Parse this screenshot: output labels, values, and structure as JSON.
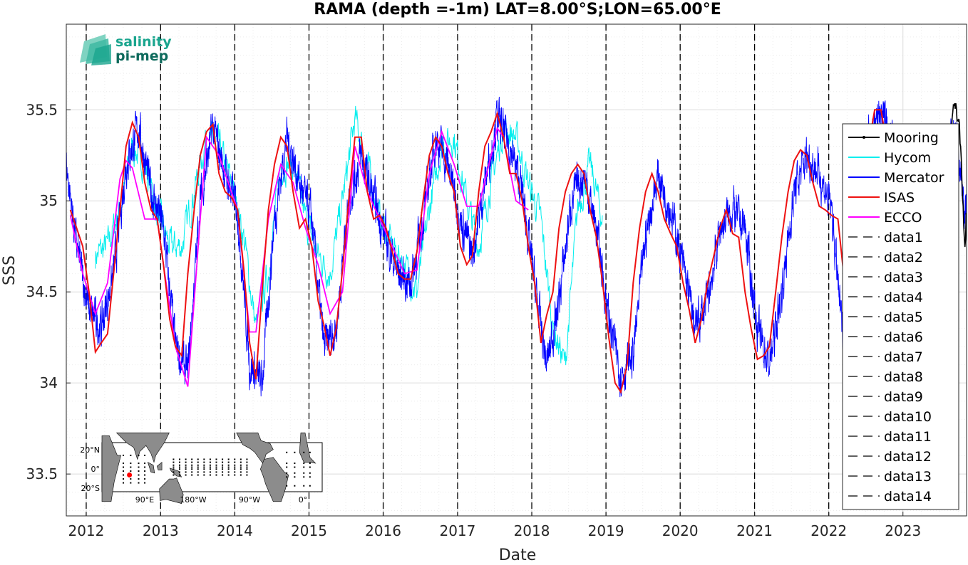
{
  "chart_data": {
    "type": "line",
    "title": "RAMA (depth =-1m) LAT=8.00°S;LON=65.00°E",
    "xlabel": "Date",
    "ylabel": "SSS",
    "xlim": [
      "2011-09-25",
      "2023-11-10"
    ],
    "ylim": [
      33.27,
      35.97
    ],
    "x_ticks": [
      "2012",
      "2013",
      "2014",
      "2015",
      "2016",
      "2017",
      "2018",
      "2019",
      "2020",
      "2021",
      "2022",
      "2023"
    ],
    "y_ticks": [
      33.5,
      34,
      34.5,
      35,
      35.5
    ],
    "grid": true,
    "legend_position": "right",
    "vertical_reference_lines": [
      "2012",
      "2013",
      "2014",
      "2015",
      "2016",
      "2017",
      "2018",
      "2019",
      "2020",
      "2021",
      "2022"
    ],
    "series": [
      {
        "name": "Mooring",
        "color": "#000000",
        "x": [
          "2023-08-01",
          "2023-08-20",
          "2023-09-05",
          "2023-09-20",
          "2023-10-01",
          "2023-10-10",
          "2023-10-18",
          "2023-10-25",
          "2023-11-01",
          "2023-11-06",
          "2023-11-10"
        ],
        "y": [
          35.2,
          35.35,
          35.45,
          35.5,
          35.45,
          35.3,
          35.15,
          35.0,
          34.8,
          34.9,
          35.05
        ]
      },
      {
        "name": "Hycom",
        "color": "#00eeee",
        "x": [
          "2012-02-15",
          "2012-04-15",
          "2012-06-15",
          "2012-08-15",
          "2012-10-15",
          "2012-12-15",
          "2013-02-15",
          "2013-04-15",
          "2013-06-15",
          "2013-08-15",
          "2013-10-15",
          "2013-12-15",
          "2014-02-15",
          "2014-04-15",
          "2014-06-15",
          "2014-08-15",
          "2014-10-15",
          "2014-12-15",
          "2015-02-15",
          "2015-04-15",
          "2015-06-15",
          "2015-08-15",
          "2015-10-15",
          "2015-12-15",
          "2016-02-15",
          "2016-04-15",
          "2016-06-15",
          "2016-08-15",
          "2016-10-15",
          "2016-12-15",
          "2017-02-15",
          "2017-04-15",
          "2017-06-15",
          "2017-08-15",
          "2017-10-15",
          "2017-12-15",
          "2018-02-15",
          "2018-04-15",
          "2018-06-15",
          "2018-08-15",
          "2018-10-15",
          "2018-12-15"
        ],
        "y": [
          34.7,
          34.75,
          34.95,
          35.3,
          35.2,
          34.95,
          34.75,
          34.75,
          35.05,
          35.35,
          35.3,
          35.1,
          34.8,
          34.3,
          34.6,
          35.2,
          35.2,
          34.9,
          34.7,
          34.6,
          35.0,
          35.45,
          35.2,
          34.9,
          34.75,
          34.65,
          34.5,
          34.95,
          35.3,
          35.35,
          35.0,
          34.75,
          35.1,
          35.4,
          35.35,
          35.1,
          34.9,
          34.3,
          34.1,
          34.95,
          35.2,
          34.9
        ]
      },
      {
        "name": "Mercator",
        "color": "#0000ff",
        "x": [
          "2011-09-25",
          "2011-11-15",
          "2012-01-15",
          "2012-03-15",
          "2012-05-15",
          "2012-07-15",
          "2012-09-15",
          "2012-11-15",
          "2013-01-15",
          "2013-03-15",
          "2013-05-15",
          "2013-07-15",
          "2013-09-15",
          "2013-11-15",
          "2014-01-15",
          "2014-03-15",
          "2014-05-15",
          "2014-07-15",
          "2014-09-15",
          "2014-11-15",
          "2015-01-15",
          "2015-03-15",
          "2015-05-15",
          "2015-07-15",
          "2015-09-15",
          "2015-11-15",
          "2016-01-15",
          "2016-03-15",
          "2016-05-15",
          "2016-07-15",
          "2016-09-15",
          "2016-11-15",
          "2017-01-15",
          "2017-03-15",
          "2017-05-15",
          "2017-07-15",
          "2017-09-15",
          "2017-11-15",
          "2018-01-15",
          "2018-03-15",
          "2018-05-15",
          "2018-07-15",
          "2018-09-15",
          "2018-11-15",
          "2019-01-15",
          "2019-03-15",
          "2019-05-15",
          "2019-07-15",
          "2019-09-15",
          "2019-11-15",
          "2020-01-15",
          "2020-03-15",
          "2020-05-15",
          "2020-07-15",
          "2020-09-15",
          "2020-11-15",
          "2021-01-15",
          "2021-03-15",
          "2021-05-15",
          "2021-07-15",
          "2021-09-15",
          "2021-11-15",
          "2022-01-15",
          "2022-03-15",
          "2022-05-15",
          "2022-07-15",
          "2022-09-15",
          "2022-11-15",
          "2023-01-15",
          "2023-03-15",
          "2023-05-15",
          "2023-07-15",
          "2023-09-15",
          "2023-11-10"
        ],
        "y": [
          35.2,
          34.75,
          34.4,
          34.3,
          34.6,
          35.2,
          35.4,
          35.05,
          34.85,
          34.2,
          34.05,
          35.0,
          35.4,
          35.15,
          34.95,
          34.1,
          34.0,
          34.9,
          35.35,
          35.1,
          34.9,
          34.2,
          34.3,
          35.0,
          35.25,
          35.0,
          34.8,
          34.6,
          34.55,
          34.9,
          35.35,
          35.2,
          34.9,
          34.7,
          35.1,
          35.45,
          35.3,
          35.05,
          34.55,
          34.1,
          34.45,
          35.0,
          35.15,
          34.85,
          34.35,
          34.05,
          34.15,
          34.8,
          35.15,
          34.95,
          34.65,
          34.3,
          34.45,
          34.85,
          34.95,
          34.85,
          34.3,
          34.1,
          34.5,
          35.05,
          35.25,
          35.15,
          34.95,
          34.2,
          34.8,
          35.35,
          35.5,
          35.3,
          35.05,
          34.9,
          35.0,
          35.2,
          35.4,
          34.9
        ]
      },
      {
        "name": "ISAS",
        "color": "#ee1111",
        "x": [
          "2011-10-15",
          "2011-11-15",
          "2011-12-15",
          "2012-01-15",
          "2012-02-15",
          "2012-03-15",
          "2012-04-15",
          "2012-05-15",
          "2012-06-15",
          "2012-07-15",
          "2012-08-15",
          "2012-09-15",
          "2012-10-15",
          "2012-11-15",
          "2012-12-15",
          "2013-01-15",
          "2013-02-15",
          "2013-03-15",
          "2013-04-15",
          "2013-05-15",
          "2013-06-15",
          "2013-07-15",
          "2013-08-15",
          "2013-09-15",
          "2013-10-15",
          "2013-11-15",
          "2013-12-15",
          "2014-01-15",
          "2014-02-15",
          "2014-03-15",
          "2014-04-15",
          "2014-05-15",
          "2014-06-15",
          "2014-07-15",
          "2014-08-15",
          "2014-09-15",
          "2014-10-15",
          "2014-11-15",
          "2014-12-15",
          "2015-01-15",
          "2015-02-15",
          "2015-03-15",
          "2015-04-15",
          "2015-05-15",
          "2015-06-15",
          "2015-07-15",
          "2015-08-15",
          "2015-09-15",
          "2015-10-15",
          "2015-11-15",
          "2015-12-15",
          "2016-01-15",
          "2016-02-15",
          "2016-03-15",
          "2016-04-15",
          "2016-05-15",
          "2016-06-15",
          "2016-07-15",
          "2016-08-15",
          "2016-09-15",
          "2016-10-15",
          "2016-11-15",
          "2016-12-15",
          "2017-01-15",
          "2017-02-15",
          "2017-03-15",
          "2017-04-15",
          "2017-05-15",
          "2017-06-15",
          "2017-07-15",
          "2017-08-15",
          "2017-09-15",
          "2017-10-15",
          "2017-11-15",
          "2017-12-15",
          "2018-01-15",
          "2018-02-15",
          "2018-03-15",
          "2018-04-15",
          "2018-05-15",
          "2018-06-15",
          "2018-07-15",
          "2018-08-15",
          "2018-09-15",
          "2018-10-15",
          "2018-11-15",
          "2018-12-15",
          "2019-01-15",
          "2019-02-15",
          "2019-03-15",
          "2019-04-15",
          "2019-05-15",
          "2019-06-15",
          "2019-07-15",
          "2019-08-15",
          "2019-09-15",
          "2019-10-15",
          "2019-11-15",
          "2019-12-15",
          "2020-01-15",
          "2020-02-15",
          "2020-03-15",
          "2020-04-15",
          "2020-05-15",
          "2020-06-15",
          "2020-07-15",
          "2020-08-15",
          "2020-09-15",
          "2020-10-15",
          "2020-11-15",
          "2020-12-15",
          "2021-01-15",
          "2021-02-15",
          "2021-03-15",
          "2021-04-15",
          "2021-05-15",
          "2021-06-15",
          "2021-07-15",
          "2021-08-15",
          "2021-09-15",
          "2021-10-15",
          "2021-11-15",
          "2021-12-15",
          "2022-01-15",
          "2022-02-15",
          "2022-03-15",
          "2022-04-15",
          "2022-05-15",
          "2022-06-15",
          "2022-07-15",
          "2022-08-15",
          "2022-09-15",
          "2022-10-15"
        ],
        "y": [
          34.95,
          34.85,
          34.75,
          34.5,
          34.17,
          34.22,
          34.27,
          34.6,
          34.95,
          35.3,
          35.43,
          35.35,
          35.1,
          34.95,
          34.9,
          34.65,
          34.35,
          34.2,
          34.15,
          34.6,
          34.95,
          35.25,
          35.38,
          35.42,
          35.15,
          35.05,
          35.02,
          34.95,
          34.62,
          34.22,
          34.02,
          34.5,
          34.95,
          35.2,
          35.35,
          35.3,
          35.05,
          34.85,
          34.9,
          34.75,
          34.45,
          34.32,
          34.15,
          34.3,
          34.62,
          35.0,
          35.35,
          35.35,
          35.05,
          34.9,
          34.92,
          34.85,
          34.72,
          34.6,
          34.57,
          34.57,
          34.72,
          35.0,
          35.25,
          35.35,
          35.3,
          35.15,
          35.05,
          34.75,
          34.65,
          34.7,
          35.05,
          35.3,
          35.38,
          35.48,
          35.35,
          35.15,
          35.15,
          35.0,
          34.75,
          34.55,
          34.22,
          34.37,
          34.5,
          34.85,
          35.05,
          35.15,
          35.2,
          35.15,
          34.95,
          34.8,
          34.55,
          34.25,
          34.0,
          33.95,
          34.1,
          34.55,
          34.85,
          35.05,
          35.15,
          35.05,
          34.9,
          34.82,
          34.75,
          34.55,
          34.4,
          34.22,
          34.35,
          34.55,
          34.7,
          34.85,
          34.95,
          34.82,
          34.8,
          34.5,
          34.3,
          34.13,
          34.15,
          34.2,
          34.5,
          34.8,
          35.05,
          35.22,
          35.28,
          35.25,
          35.1,
          34.97,
          34.95,
          34.92,
          34.9,
          34.6,
          34.2,
          34.5,
          34.9,
          35.3,
          35.5,
          35.5,
          35.3
        ]
      },
      {
        "name": "ECCO",
        "color": "#ff00ff",
        "x": [
          "2011-10-15",
          "2011-12-15",
          "2012-02-15",
          "2012-04-15",
          "2012-06-15",
          "2012-07-15",
          "2012-08-15",
          "2012-10-15",
          "2012-12-15",
          "2013-01-15",
          "2013-03-15",
          "2013-05-15",
          "2013-07-15",
          "2013-08-15",
          "2013-10-15",
          "2013-12-15",
          "2014-01-15",
          "2014-03-15",
          "2014-04-15",
          "2014-06-15",
          "2014-08-15",
          "2014-10-15",
          "2014-12-15",
          "2015-02-15",
          "2015-04-15",
          "2015-06-15",
          "2015-08-15",
          "2015-10-15",
          "2015-12-15",
          "2016-02-15",
          "2016-04-15",
          "2016-06-15",
          "2016-08-15",
          "2016-10-15",
          "2016-12-15",
          "2017-02-15",
          "2017-04-15",
          "2017-06-15",
          "2017-07-15",
          "2017-08-15",
          "2017-10-15",
          "2017-12-15"
        ],
        "y": [
          34.92,
          34.6,
          34.38,
          34.55,
          35.12,
          35.22,
          35.18,
          34.9,
          34.9,
          34.65,
          34.2,
          33.98,
          34.9,
          35.35,
          35.25,
          35.05,
          34.95,
          34.28,
          34.28,
          34.9,
          35.2,
          35.1,
          34.85,
          34.65,
          34.38,
          34.5,
          35.3,
          35.05,
          34.9,
          34.75,
          34.6,
          34.62,
          35.15,
          35.38,
          35.2,
          34.97,
          34.97,
          35.25,
          35.4,
          35.35,
          35.0,
          34.95
        ]
      },
      {
        "name": "data1",
        "color": "#000000",
        "x": [],
        "y": []
      },
      {
        "name": "data2",
        "color": "#000000",
        "x": [],
        "y": []
      },
      {
        "name": "data3",
        "color": "#000000",
        "x": [],
        "y": []
      },
      {
        "name": "data4",
        "color": "#000000",
        "x": [],
        "y": []
      },
      {
        "name": "data5",
        "color": "#000000",
        "x": [],
        "y": []
      },
      {
        "name": "data6",
        "color": "#000000",
        "x": [],
        "y": []
      },
      {
        "name": "data7",
        "color": "#000000",
        "x": [],
        "y": []
      },
      {
        "name": "data8",
        "color": "#000000",
        "x": [],
        "y": []
      },
      {
        "name": "data9",
        "color": "#000000",
        "x": [],
        "y": []
      },
      {
        "name": "data10",
        "color": "#000000",
        "x": [],
        "y": []
      },
      {
        "name": "data11",
        "color": "#000000",
        "x": [],
        "y": []
      },
      {
        "name": "data12",
        "color": "#000000",
        "x": [],
        "y": []
      },
      {
        "name": "data13",
        "color": "#000000",
        "x": [],
        "y": []
      },
      {
        "name": "data14",
        "color": "#000000",
        "x": [],
        "y": []
      }
    ]
  },
  "logo": {
    "line1": "salinity",
    "line2": "pi-mep",
    "color": "#1aa58e"
  },
  "inset_map": {
    "lat_labels": [
      "20°N",
      "0°",
      "20°S"
    ],
    "lon_labels": [
      "90°E",
      "180°W",
      "90°W",
      "0°"
    ],
    "marker": {
      "lat": -8.0,
      "lon": 65.0,
      "color": "#ff0000"
    }
  }
}
